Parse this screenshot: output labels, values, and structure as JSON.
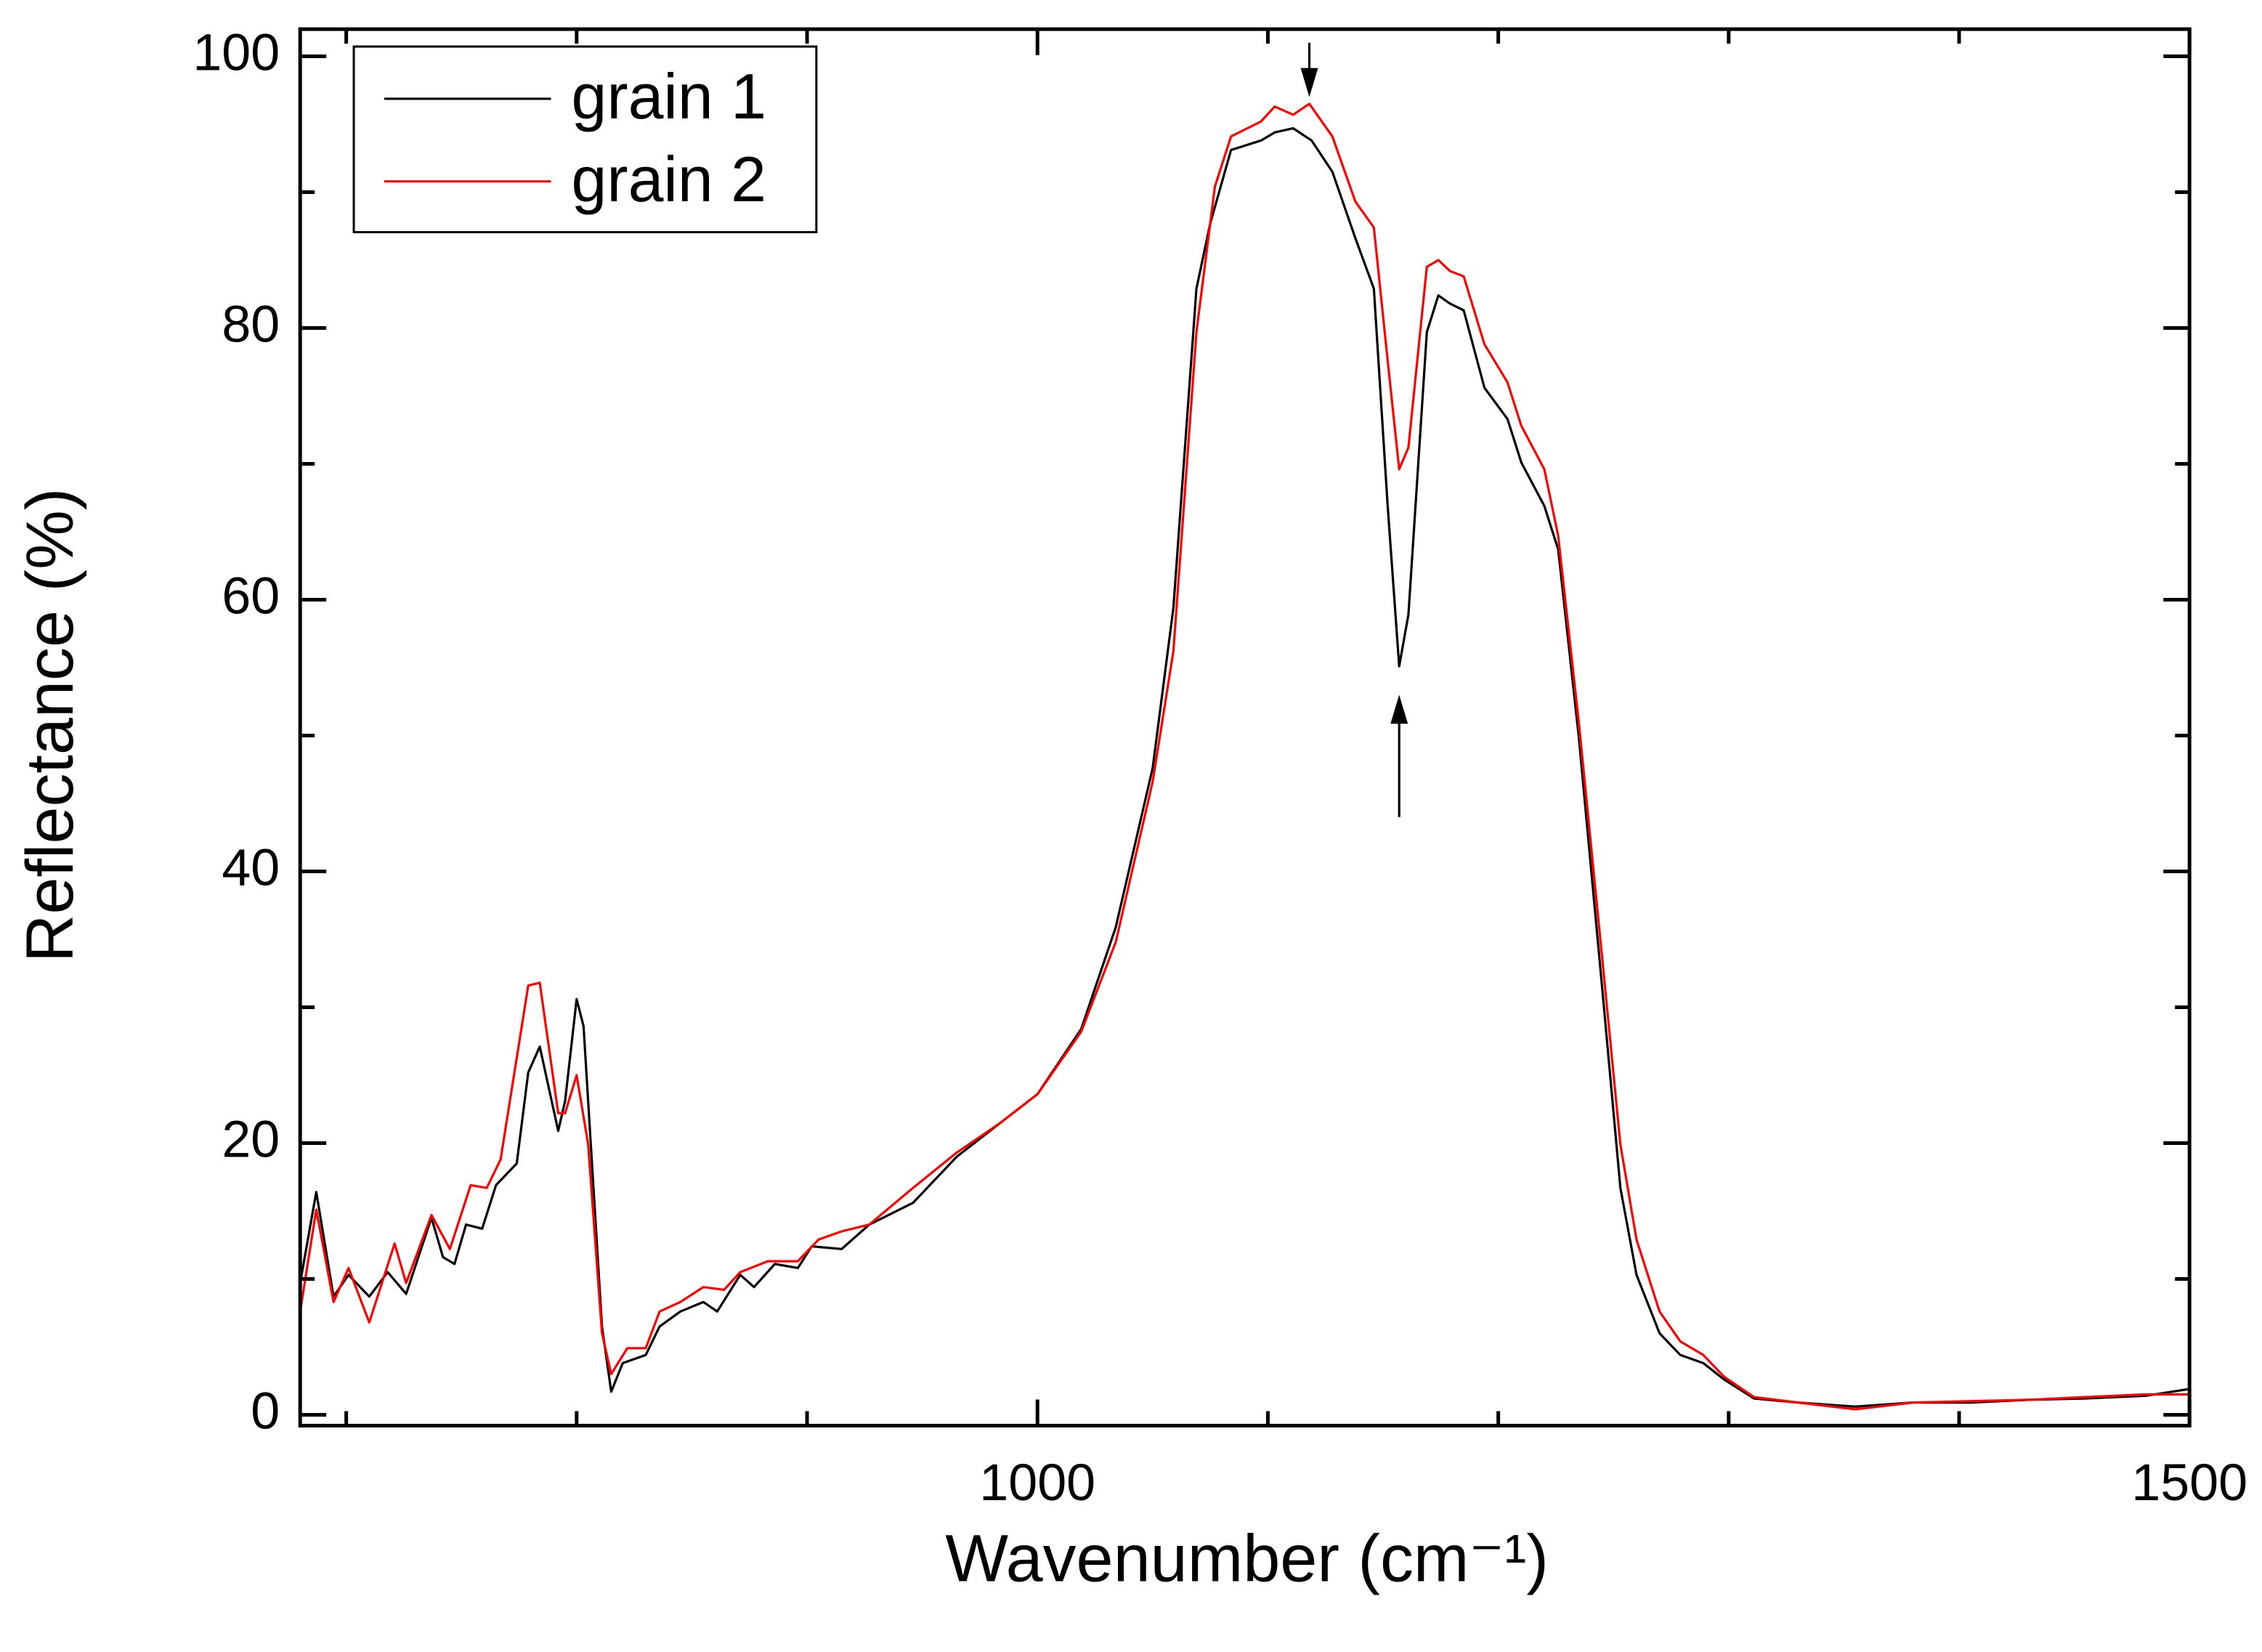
{
  "chart_data": {
    "type": "line",
    "xlabel": "Wavenumber (cm⁻¹)",
    "ylabel": "Reflectance (%)",
    "xlim": [
      680,
      1500
    ],
    "ylim": [
      -0.8,
      102
    ],
    "xticks": [
      1000,
      1500
    ],
    "xticks_minor": [
      700,
      800,
      900,
      1100,
      1200,
      1300,
      1400
    ],
    "yticks": [
      0,
      20,
      40,
      60,
      80,
      100
    ],
    "yticks_minor": [
      10,
      30,
      50,
      70,
      90
    ],
    "legend": "upper left",
    "series": [
      {
        "name": "grain 1",
        "color": "#000000",
        "x": [
          680,
          687,
          694.5,
          701,
          710,
          718,
          726,
          737,
          742,
          747,
          752,
          759,
          765,
          774,
          779,
          784,
          792,
          795,
          800,
          803,
          811,
          815,
          820,
          830,
          836,
          845,
          855,
          861,
          871,
          877,
          886,
          896,
          902,
          915,
          927,
          946,
          965,
          984,
          1000,
          1019,
          1034,
          1050,
          1059,
          1069,
          1075,
          1084,
          1097,
          1103,
          1111,
          1119,
          1128,
          1138,
          1146,
          1152,
          1157,
          1161,
          1169,
          1174,
          1179,
          1185,
          1194,
          1204,
          1210,
          1220,
          1226,
          1235,
          1245,
          1253,
          1260,
          1270,
          1279,
          1289,
          1298,
          1311,
          1330,
          1355,
          1380,
          1405,
          1430,
          1455,
          1481,
          1500
        ],
        "values": [
          9.7,
          16.4,
          8.7,
          10.3,
          8.7,
          10.5,
          8.9,
          14.5,
          11.6,
          11.1,
          14.0,
          13.7,
          16.9,
          18.5,
          25.2,
          27.1,
          20.9,
          23.1,
          30.6,
          28.6,
          6.5,
          1.7,
          3.8,
          4.4,
          6.5,
          7.6,
          8.3,
          7.6,
          10.3,
          9.4,
          11.1,
          10.8,
          12.4,
          12.2,
          14.0,
          15.6,
          19.0,
          21.5,
          23.6,
          28.4,
          35.9,
          47.6,
          59.4,
          82.9,
          87.7,
          93.1,
          93.8,
          94.4,
          94.7,
          93.8,
          91.5,
          86.6,
          82.9,
          66.9,
          55.1,
          58.9,
          79.7,
          82.4,
          81.8,
          81.3,
          75.6,
          73.3,
          70.1,
          66.9,
          63.7,
          49.8,
          31.6,
          16.7,
          10.3,
          6.0,
          4.4,
          3.8,
          2.6,
          1.2,
          0.9,
          0.6,
          0.9,
          0.9,
          1.1,
          1.2,
          1.4,
          1.9
        ]
      },
      {
        "name": "grain 2",
        "color": "#ff0000",
        "x": [
          680,
          687,
          694.5,
          701,
          710,
          721,
          726,
          737,
          745,
          754,
          761,
          767,
          779,
          784,
          792,
          795,
          800,
          805,
          811,
          815,
          822,
          830,
          836,
          845,
          855,
          864,
          871,
          883,
          896,
          905,
          915,
          927,
          946,
          965,
          984,
          1000,
          1019,
          1034,
          1050,
          1059,
          1069,
          1077,
          1084,
          1097,
          1103,
          1111,
          1118,
          1128,
          1138,
          1146,
          1152,
          1157,
          1161,
          1169,
          1174,
          1179,
          1185,
          1194,
          1204,
          1210,
          1220,
          1226,
          1235,
          1245,
          1253,
          1260,
          1270,
          1279,
          1289,
          1298,
          1311,
          1330,
          1355,
          1380,
          1405,
          1430,
          1455,
          1481,
          1500
        ],
        "values": [
          7.6,
          15.1,
          8.3,
          10.8,
          6.8,
          12.6,
          9.7,
          14.7,
          12.2,
          16.9,
          16.7,
          18.8,
          31.6,
          31.8,
          22.2,
          22.2,
          25.0,
          19.9,
          6.0,
          3.0,
          4.9,
          4.9,
          7.6,
          8.3,
          9.4,
          9.2,
          10.5,
          11.3,
          11.3,
          12.9,
          13.5,
          14.0,
          16.7,
          19.3,
          21.5,
          23.6,
          28.2,
          34.8,
          46.6,
          56.2,
          79.7,
          90.4,
          94.1,
          95.2,
          96.3,
          95.7,
          96.5,
          94.1,
          89.3,
          87.4,
          77.6,
          69.6,
          71.2,
          84.5,
          85.0,
          84.2,
          83.8,
          78.8,
          76.0,
          72.8,
          69.6,
          64.7,
          50.9,
          33.8,
          19.9,
          12.9,
          7.6,
          5.4,
          4.4,
          2.8,
          1.3,
          0.9,
          0.4,
          0.9,
          1.0,
          1.1,
          1.3,
          1.5,
          1.5
        ]
      }
    ],
    "arrows": [
      {
        "x": 1118,
        "y_from": 101,
        "y_to": 97
      },
      {
        "x": 1157,
        "y_from": 44,
        "y_to": 53
      }
    ]
  }
}
